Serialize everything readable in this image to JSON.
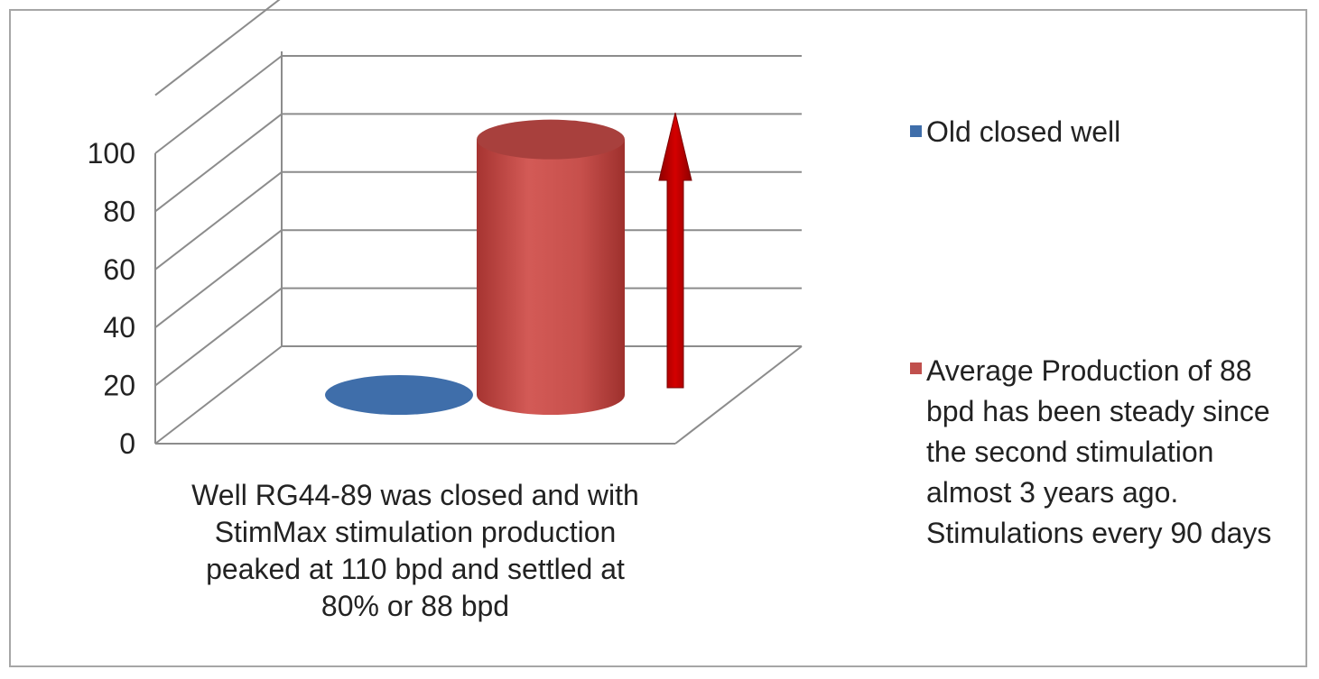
{
  "chart_data": {
    "type": "bar",
    "style": "3d-cylinder",
    "categories": [
      "Well RG44-89 was closed and with StimMax stimulation production peaked at 110 bpd and settled at 80% or 88 bpd"
    ],
    "category_label_lines": [
      "Well RG44-89 was closed and with",
      "StimMax stimulation production",
      "peaked at 110 bpd and settled at",
      "80% or 88 bpd"
    ],
    "series": [
      {
        "name": "Old closed well",
        "values": [
          0
        ],
        "color": "#3f6eaa"
      },
      {
        "name": "Average Production of 88 bpd has been steady since the second stimulation almost 3 years ago. Stimulations every 90 days",
        "name_lines": [
          "Average Production of 88",
          "bpd has been steady since",
          "the second stimulation",
          "almost 3 years ago.",
          "Stimulations every 90 days"
        ],
        "values": [
          88
        ],
        "color": "#c0504d"
      }
    ],
    "ylim": [
      0,
      100
    ],
    "yticks": [
      0,
      20,
      40,
      60,
      80,
      100
    ],
    "grid": true,
    "legend_position": "right",
    "annotation": "upward-arrow",
    "arrow_color": "#c00000"
  }
}
